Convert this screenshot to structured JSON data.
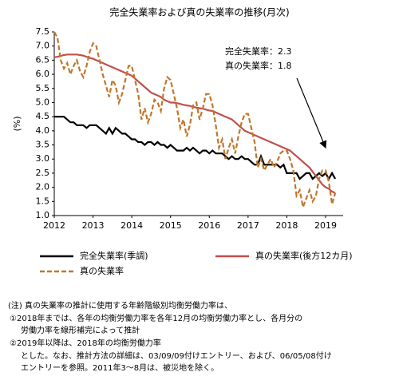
{
  "chart_data": {
    "type": "line",
    "title": "完全失業率および真の失業率の推移(月次)",
    "y_label": "(%)",
    "annotations": [
      "完全失業率：2.3",
      "真の失業率：1.8"
    ],
    "categories": [
      "2012",
      null,
      null,
      null,
      null,
      null,
      null,
      null,
      null,
      null,
      null,
      null,
      "2013",
      null,
      null,
      null,
      null,
      null,
      null,
      null,
      null,
      null,
      null,
      null,
      "2014",
      null,
      null,
      null,
      null,
      null,
      null,
      null,
      null,
      null,
      null,
      null,
      "2015",
      null,
      null,
      null,
      null,
      null,
      null,
      null,
      null,
      null,
      null,
      null,
      "2016",
      null,
      null,
      null,
      null,
      null,
      null,
      null,
      null,
      null,
      null,
      null,
      "2017",
      null,
      null,
      null,
      null,
      null,
      null,
      null,
      null,
      null,
      null,
      null,
      "2018",
      null,
      null,
      null,
      null,
      null,
      null,
      null,
      null,
      null,
      null,
      null,
      "2019",
      null,
      null,
      null
    ],
    "ylim": [
      1,
      7.5
    ],
    "yticks": [
      {
        "value": 1,
        "label": "1.0"
      },
      1.5,
      {
        "value": 2,
        "label": "2.0"
      },
      2.5,
      {
        "value": 3,
        "label": "3.0"
      },
      3.5,
      {
        "value": 4,
        "label": "4.0"
      },
      4.5,
      {
        "value": 5,
        "label": "5.0"
      },
      5.5,
      {
        "value": 6,
        "label": "6.0"
      },
      6.5,
      {
        "value": 7,
        "label": "7.0"
      },
      7.5
    ],
    "series": [
      {
        "name": "完全失業率(季調)",
        "color": "#000000",
        "dashed": false,
        "values": [
          4.5,
          4.5,
          4.5,
          4.5,
          4.4,
          4.3,
          4.3,
          4.2,
          4.2,
          4.2,
          4.1,
          4.2,
          4.2,
          4.2,
          4.1,
          4.0,
          3.9,
          4.1,
          3.9,
          4.1,
          4.0,
          3.9,
          3.9,
          3.8,
          3.7,
          3.7,
          3.6,
          3.6,
          3.5,
          3.6,
          3.6,
          3.5,
          3.6,
          3.5,
          3.5,
          3.4,
          3.5,
          3.4,
          3.3,
          3.3,
          3.3,
          3.4,
          3.3,
          3.4,
          3.3,
          3.2,
          3.3,
          3.3,
          3.2,
          3.3,
          3.2,
          3.2,
          3.2,
          3.1,
          3.0,
          3.1,
          3.0,
          3.0,
          3.1,
          3.0,
          3.0,
          2.9,
          2.8,
          2.8,
          3.1,
          2.8,
          2.8,
          2.8,
          2.8,
          2.8,
          2.7,
          2.8,
          2.5,
          2.5,
          2.5,
          2.5,
          2.3,
          2.4,
          2.5,
          2.5,
          2.3,
          2.4,
          2.5,
          2.4,
          2.5,
          2.3,
          2.5,
          2.3
        ]
      },
      {
        "name": "真の失業率(後方12カ月)",
        "color": "#c0504d",
        "dashed": false,
        "values": [
          6.6,
          6.62,
          6.65,
          6.68,
          6.7,
          6.7,
          6.7,
          6.7,
          6.68,
          6.66,
          6.62,
          6.58,
          6.55,
          6.5,
          6.45,
          6.4,
          6.35,
          6.3,
          6.25,
          6.2,
          6.15,
          6.1,
          6.05,
          6.0,
          5.95,
          5.85,
          5.75,
          5.65,
          5.55,
          5.45,
          5.35,
          5.3,
          5.25,
          5.2,
          5.1,
          5.05,
          5.0,
          5.0,
          4.98,
          4.95,
          4.92,
          4.9,
          4.88,
          4.85,
          4.82,
          4.8,
          4.78,
          4.75,
          4.72,
          4.7,
          4.65,
          4.6,
          4.55,
          4.5,
          4.45,
          4.4,
          4.3,
          4.2,
          4.1,
          4.0,
          3.95,
          3.9,
          3.85,
          3.8,
          3.75,
          3.7,
          3.65,
          3.6,
          3.55,
          3.5,
          3.45,
          3.4,
          3.35,
          3.3,
          3.2,
          3.1,
          3.0,
          2.9,
          2.8,
          2.7,
          2.55,
          2.4,
          2.25,
          2.1,
          2.0,
          1.95,
          1.85,
          1.8
        ]
      },
      {
        "name": "真の失業率",
        "color": "#c0772b",
        "dashed": true,
        "values": [
          7.5,
          7.3,
          6.5,
          6.2,
          6.4,
          6.0,
          6.3,
          6.5,
          6.1,
          5.9,
          6.3,
          6.8,
          7.1,
          7.0,
          6.5,
          6.0,
          5.6,
          5.2,
          5.8,
          5.6,
          5.0,
          5.3,
          5.8,
          6.3,
          6.3,
          5.8,
          5.3,
          4.4,
          4.8,
          4.3,
          4.6,
          5.1,
          5.0,
          4.7,
          5.5,
          5.9,
          5.8,
          5.3,
          4.8,
          4.1,
          4.4,
          3.8,
          4.2,
          4.9,
          5.0,
          4.4,
          4.8,
          5.3,
          5.3,
          4.9,
          4.2,
          3.4,
          3.7,
          3.0,
          3.4,
          3.7,
          3.2,
          3.8,
          4.3,
          4.6,
          4.6,
          4.1,
          3.6,
          2.7,
          3.0,
          2.6,
          2.8,
          3.0,
          2.7,
          2.9,
          3.2,
          3.3,
          3.3,
          3.0,
          2.6,
          1.7,
          1.9,
          1.3,
          1.6,
          1.9,
          1.5,
          1.7,
          2.3,
          2.6,
          2.6,
          2.2,
          1.4,
          1.8
        ]
      }
    ]
  },
  "notes": [
    "(注) 真の失業率の推計に使用する年齢階級別均衡労働力率は、",
    "①2018年までは、各年の均衡労働力率を各年12月の均衡労働力率とし、各月分の",
    "労働力率を線形補完によって推計",
    "②2019年以降は、2018年の均衡労働力率",
    "とした。なお、推計方法の詳細は、03/09/09付けエントリー、および、06/05/08付け",
    "エントリーを参照。2011年3～8月は、被災地を除く。"
  ]
}
